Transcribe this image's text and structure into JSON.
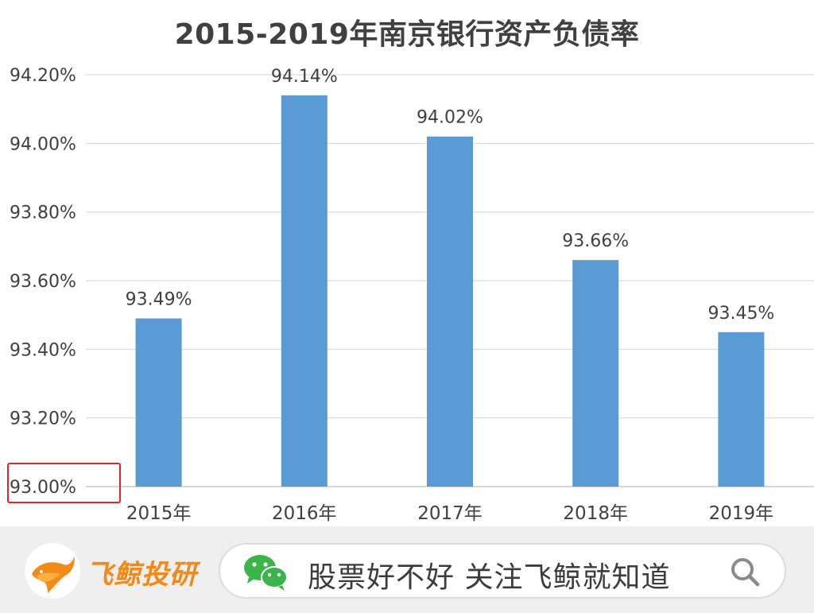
{
  "chart_data": {
    "type": "bar",
    "title": "2015-2019年南京银行资产负债率",
    "categories": [
      "2015年",
      "2016年",
      "2017年",
      "2018年",
      "2019年"
    ],
    "values": [
      93.49,
      94.14,
      94.02,
      93.66,
      93.45
    ],
    "data_labels": [
      "93.49%",
      "94.14%",
      "94.02%",
      "93.66%",
      "93.45%"
    ],
    "y_ticks": [
      93.0,
      93.2,
      93.4,
      93.6,
      93.8,
      94.0,
      94.2
    ],
    "y_tick_labels": [
      "93.00%",
      "93.20%",
      "93.40%",
      "93.60%",
      "93.80%",
      "94.00%",
      "94.20%"
    ],
    "ylim": [
      93.0,
      94.2
    ],
    "grid": true,
    "legend": "none",
    "bar_color": "#5b9bd5",
    "highlight_color": "#e8212a"
  },
  "footer": {
    "brand_name": "飞鲸投研",
    "slogan": "股票好不好 关注飞鲸就知道",
    "brand_color": "#f28a1a",
    "wechat_color": "#39b54a"
  },
  "icons": {
    "brand": "whale-logo-icon",
    "wechat": "wechat-icon",
    "search": "search-icon"
  }
}
